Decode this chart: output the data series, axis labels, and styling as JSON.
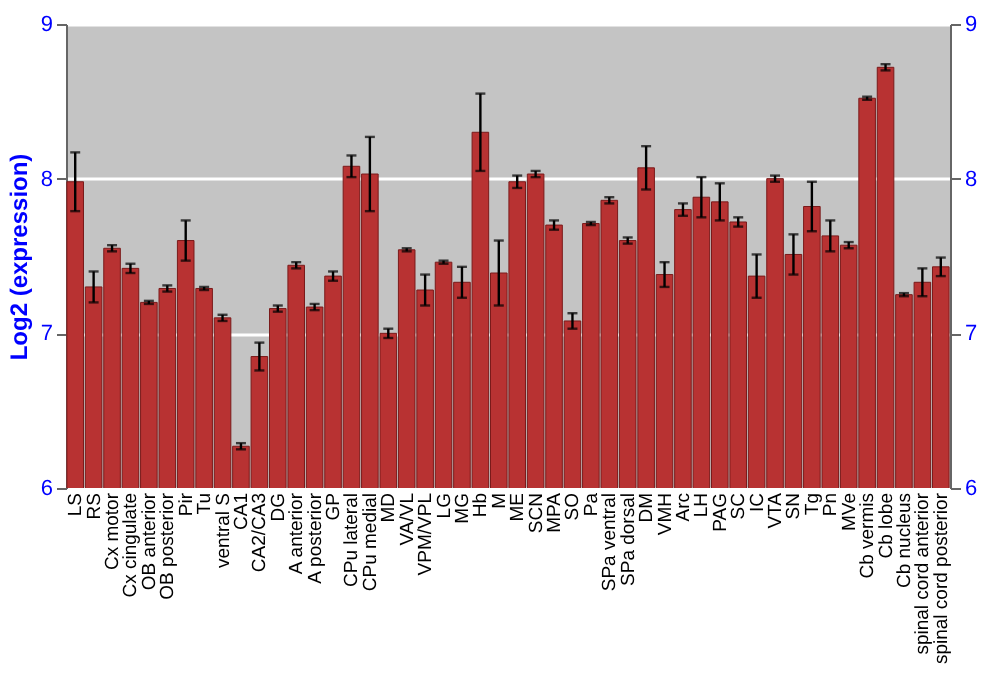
{
  "chart_data": {
    "type": "bar",
    "ylabel": "Log2 (expression)",
    "categories": [
      "LS",
      "RS",
      "Cx motor",
      "Cx cingulate",
      "OB anterior",
      "OB posterior",
      "Pir",
      "Tu",
      "ventral S",
      "CA1",
      "CA2/CA3",
      "DG",
      "A anterior",
      "A posterior",
      "GP",
      "CPu lateral",
      "CPu medial",
      "MD",
      "VA/VL",
      "VPM/VPL",
      "LG",
      "MG",
      "Hb",
      "M",
      "ME",
      "SCN",
      "MPA",
      "SO",
      "Pa",
      "SPa ventral",
      "SPa dorsal",
      "DM",
      "VMH",
      "Arc",
      "LH",
      "PAG",
      "SC",
      "IC",
      "VTA",
      "SN",
      "Tg",
      "Pn",
      "MVe",
      "Cb vermis",
      "Cb lobe",
      "Cb nucleus",
      "spinal cord anterior",
      "spinal cord posterior"
    ],
    "values": [
      7.98,
      7.3,
      7.55,
      7.42,
      7.2,
      7.29,
      7.6,
      7.29,
      7.1,
      6.27,
      6.85,
      7.16,
      7.44,
      7.17,
      7.37,
      8.08,
      8.03,
      7.0,
      7.54,
      7.28,
      7.46,
      7.33,
      8.3,
      7.39,
      7.98,
      8.03,
      7.7,
      7.08,
      7.71,
      7.86,
      7.6,
      8.07,
      7.38,
      7.8,
      7.88,
      7.85,
      7.72,
      7.37,
      8.0,
      7.51,
      7.82,
      7.63,
      7.57,
      8.52,
      8.72,
      7.25,
      7.33,
      7.43
    ],
    "errors": [
      0.19,
      0.1,
      0.02,
      0.03,
      0.01,
      0.02,
      0.13,
      0.01,
      0.02,
      0.02,
      0.09,
      0.02,
      0.02,
      0.02,
      0.03,
      0.07,
      0.24,
      0.03,
      0.01,
      0.1,
      0.01,
      0.1,
      0.25,
      0.21,
      0.04,
      0.02,
      0.03,
      0.05,
      0.01,
      0.02,
      0.02,
      0.14,
      0.08,
      0.04,
      0.13,
      0.12,
      0.03,
      0.14,
      0.02,
      0.13,
      0.16,
      0.1,
      0.02,
      0.01,
      0.02,
      0.01,
      0.09,
      0.06
    ],
    "color": "#b83232",
    "ylim": [
      6,
      9
    ],
    "yticks": [
      6,
      7,
      8,
      9
    ],
    "y2lim": [
      6,
      9
    ],
    "y2ticks": [
      6,
      7,
      8,
      9
    ],
    "grid": "y"
  }
}
